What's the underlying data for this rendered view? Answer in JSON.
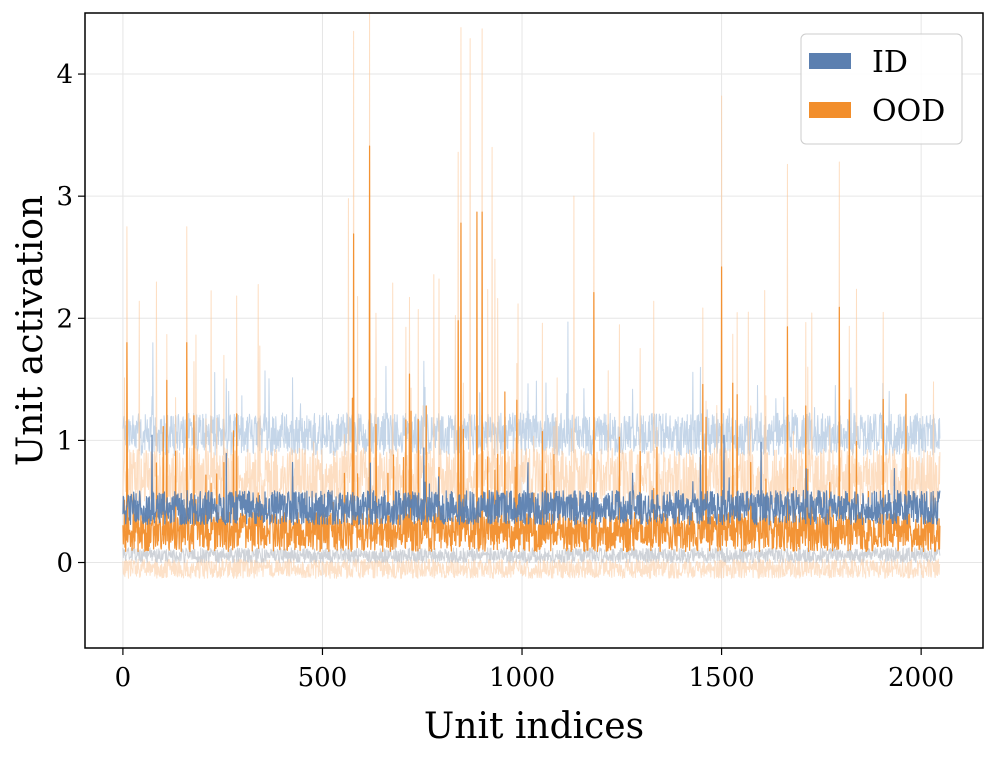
{
  "chart_data": {
    "type": "line",
    "title": "",
    "xlabel": "Unit indices",
    "ylabel": "Unit activation",
    "xlim": [
      -95,
      2155
    ],
    "ylim": [
      -0.7,
      4.5
    ],
    "xticks": [
      0,
      500,
      1000,
      1500,
      2000
    ],
    "yticks": [
      0,
      1,
      2,
      3,
      4
    ],
    "grid": true,
    "legend_position": "top-right",
    "n_units": 2048,
    "series": [
      {
        "name": "ID",
        "color": "#5b7fb0",
        "band_color": "#adc4e0",
        "mean_level": 0.45,
        "band_lower_level": 0.06,
        "band_upper_level": 1.05,
        "notable_upper_peaks": [
          {
            "x": 15,
            "y": 1.17
          },
          {
            "x": 75,
            "y": 1.8
          },
          {
            "x": 1060,
            "y": 1.47
          },
          {
            "x": 1115,
            "y": 1.97
          },
          {
            "x": 1590,
            "y": 1.45
          },
          {
            "x": 1785,
            "y": 1.45
          }
        ]
      },
      {
        "name": "OOD",
        "color": "#f28e2b",
        "band_color": "#fbc89a",
        "mean_level": 0.25,
        "band_lower_level": -0.05,
        "band_upper_level": 1.25,
        "mean_peaks": [
          {
            "x": 10,
            "y": 1.8
          },
          {
            "x": 160,
            "y": 1.8
          },
          {
            "x": 578,
            "y": 2.69
          },
          {
            "x": 618,
            "y": 3.41
          },
          {
            "x": 840,
            "y": 1.98
          },
          {
            "x": 847,
            "y": 2.78
          },
          {
            "x": 887,
            "y": 2.87
          },
          {
            "x": 900,
            "y": 2.87
          },
          {
            "x": 1180,
            "y": 2.21
          },
          {
            "x": 1500,
            "y": 2.42
          },
          {
            "x": 1665,
            "y": 1.93
          },
          {
            "x": 1795,
            "y": 2.09
          }
        ],
        "upper_peaks": [
          {
            "x": 10,
            "y": 2.75
          },
          {
            "x": 160,
            "y": 2.75
          },
          {
            "x": 565,
            "y": 2.98
          },
          {
            "x": 578,
            "y": 4.35
          },
          {
            "x": 618,
            "y": 4.5
          },
          {
            "x": 840,
            "y": 3.36
          },
          {
            "x": 847,
            "y": 4.38
          },
          {
            "x": 870,
            "y": 4.29
          },
          {
            "x": 900,
            "y": 4.37
          },
          {
            "x": 925,
            "y": 3.4
          },
          {
            "x": 1130,
            "y": 3.0
          },
          {
            "x": 1180,
            "y": 3.52
          },
          {
            "x": 1500,
            "y": 3.82
          },
          {
            "x": 1665,
            "y": 3.26
          },
          {
            "x": 1795,
            "y": 3.28
          }
        ]
      }
    ]
  }
}
